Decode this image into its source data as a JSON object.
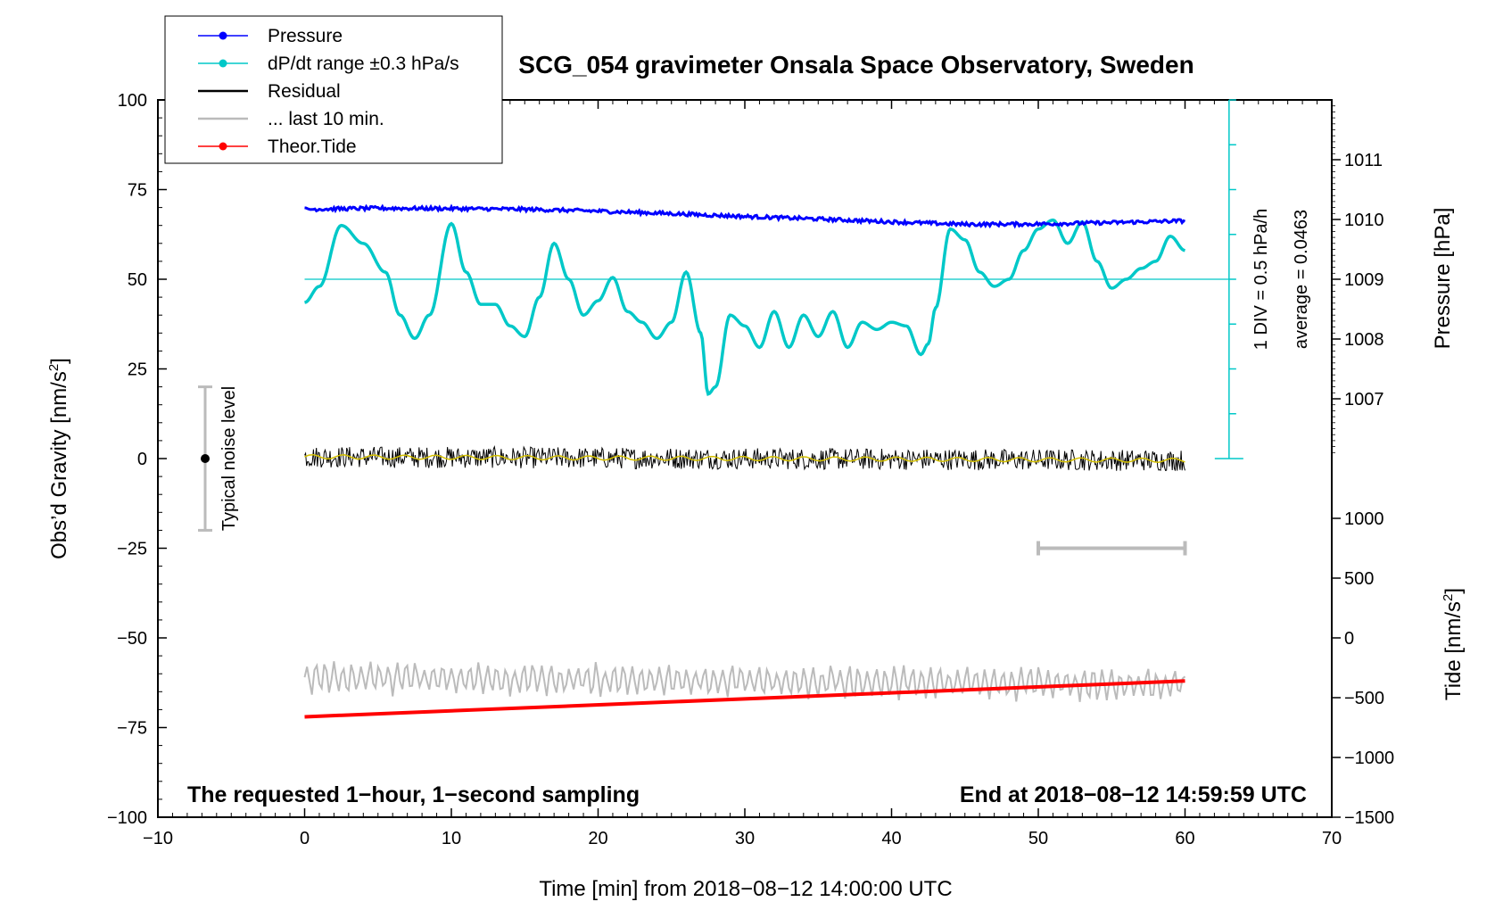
{
  "chart_data": {
    "type": "line",
    "title": "SCG_054 gravimeter Onsala Space Observatory, Sweden",
    "xlabel": "Time [min] from 2018−08−12 14:00:00 UTC",
    "ylabel": "Obs’d Gravity [nm/s",
    "ylabel_sup": "2",
    "ylabel_close": "]",
    "pressure_label": "Pressure [hPa]",
    "tide_label": "Tide [nm/s",
    "tide_label_sup": "2",
    "tide_label_close": "]",
    "xlim": [
      -10,
      70
    ],
    "ylim": [
      -100,
      100
    ],
    "x_ticks": [
      "−10",
      "0",
      "10",
      "20",
      "30",
      "40",
      "50",
      "60",
      "70"
    ],
    "y_ticks": [
      "100",
      "75",
      "50",
      "25",
      "0",
      "−25",
      "−50",
      "−75",
      "−100"
    ],
    "pressure_ticks": [
      "1011",
      "1010",
      "1009",
      "1008",
      "1007"
    ],
    "pressure_tick_values": [
      1011,
      1010,
      1009,
      1008,
      1007
    ],
    "tide_ticks": [
      "1000",
      "500",
      "0",
      "−500",
      "−1000",
      "−1500"
    ],
    "tide_tick_values": [
      1000,
      500,
      0,
      -500,
      -1000,
      -1500
    ],
    "legend": [
      {
        "label": "Pressure",
        "color": "#0000ff",
        "marker": true
      },
      {
        "label": "dP/dt range ±0.3 hPa/s",
        "color": "#00c8c8",
        "marker": true
      },
      {
        "label": "Residual",
        "color": "#000000",
        "marker": false
      },
      {
        "label": "... last 10 min.",
        "color": "#bbbbbb",
        "marker": false
      },
      {
        "label": "Theor.Tide",
        "color": "#ff0000",
        "marker": true
      }
    ],
    "legend_position": "top-left",
    "dpdt_scale": "1 DIV = 0.5 hPa/h",
    "dpdt_average": "average = 0.0463",
    "noise_label": "Typical noise level",
    "noise_range": [
      -20,
      20
    ],
    "note_left": "The requested 1−hour, 1−second sampling",
    "note_right": "End at 2018−08−12 14:59:59 UTC",
    "dpdt_reference_level": 50,
    "window_last_10min": [
      50,
      60
    ],
    "series": [
      {
        "name": "Pressure",
        "color": "#0000ff",
        "x": [
          0,
          5,
          10,
          15,
          20,
          25,
          30,
          35,
          40,
          45,
          50,
          55,
          60
        ],
        "values": [
          69.5,
          69.8,
          69.7,
          69.5,
          69.0,
          68.3,
          67.5,
          66.8,
          66.0,
          65.3,
          65.4,
          65.8,
          66.3
        ]
      },
      {
        "name": "dP/dt range ±0.3 hPa/s",
        "color": "#00c8c8",
        "x": [
          0,
          1,
          2.5,
          4,
          5.5,
          6.5,
          7.5,
          8.5,
          10,
          11,
          12,
          13,
          14,
          15,
          16,
          17,
          18,
          19,
          20,
          21,
          22,
          23,
          24,
          25,
          26,
          27,
          27.5,
          28,
          29,
          30,
          31,
          32,
          33,
          34,
          35,
          36,
          37,
          38,
          39,
          40,
          41,
          42,
          42.5,
          43,
          44,
          45,
          46,
          47,
          48,
          49,
          50,
          51,
          52,
          53,
          54,
          55,
          56,
          57,
          58,
          59,
          60
        ],
        "values": [
          43.5,
          48,
          65,
          60,
          52,
          40,
          33.5,
          40,
          65.5,
          52,
          43,
          43,
          37,
          34,
          45,
          60,
          50,
          40,
          44,
          50.5,
          41,
          38,
          33.5,
          38,
          52,
          35,
          18,
          20,
          40,
          37,
          31,
          41,
          31,
          40,
          34,
          41,
          31,
          38,
          36,
          38,
          37,
          29,
          32,
          42,
          64,
          61,
          52,
          48,
          50,
          58,
          64,
          66.5,
          60,
          66,
          55,
          47.5,
          50,
          53,
          55,
          62,
          58
        ]
      },
      {
        "name": "Residual",
        "color": "#000000",
        "x": [
          0,
          60
        ],
        "values": [
          0.5,
          -0.5
        ],
        "noise_amplitude": 3
      },
      {
        "name": "... last 10 min.",
        "color": "#bbbbbb",
        "x": [
          0,
          60
        ],
        "values": [
          -61,
          -63
        ],
        "noise_amplitude": 4
      },
      {
        "name": "Theor.Tide",
        "color": "#ff0000",
        "x": [
          0,
          60
        ],
        "values": [
          -72,
          -62
        ]
      }
    ]
  }
}
